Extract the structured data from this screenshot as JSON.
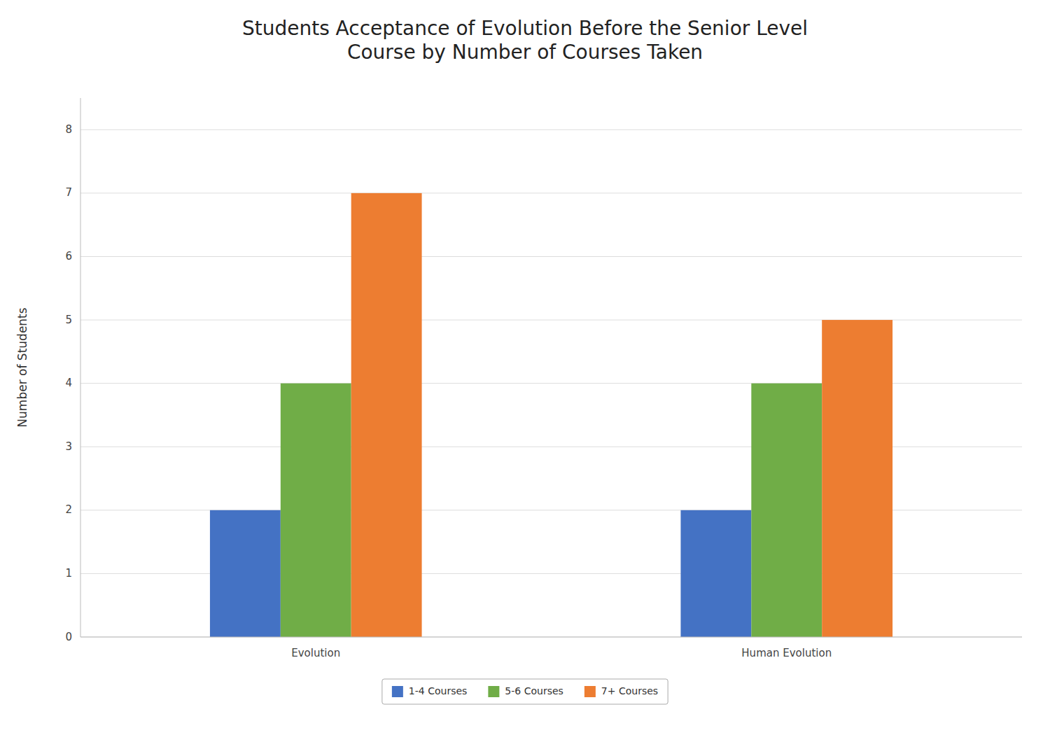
{
  "chart_data": {
    "type": "bar",
    "title": "Students Acceptance of Evolution Before the Senior Level\nCourse by Number of Courses Taken",
    "categories": [
      "Evolution",
      "Human Evolution"
    ],
    "series": [
      {
        "name": "1-4 Courses",
        "color": "#4472C4",
        "values": [
          2,
          2
        ]
      },
      {
        "name": "5-6 Courses",
        "color": "#70AD47",
        "values": [
          4,
          4
        ]
      },
      {
        "name": "7+ Courses",
        "color": "#ED7D31",
        "values": [
          7,
          5
        ]
      }
    ],
    "ylabel": "Number of Students",
    "ylim": [
      0,
      8.5
    ],
    "yticks": [
      0,
      1,
      2,
      3,
      4,
      5,
      6,
      7,
      8
    ],
    "grid": true,
    "legend": "bottom"
  }
}
